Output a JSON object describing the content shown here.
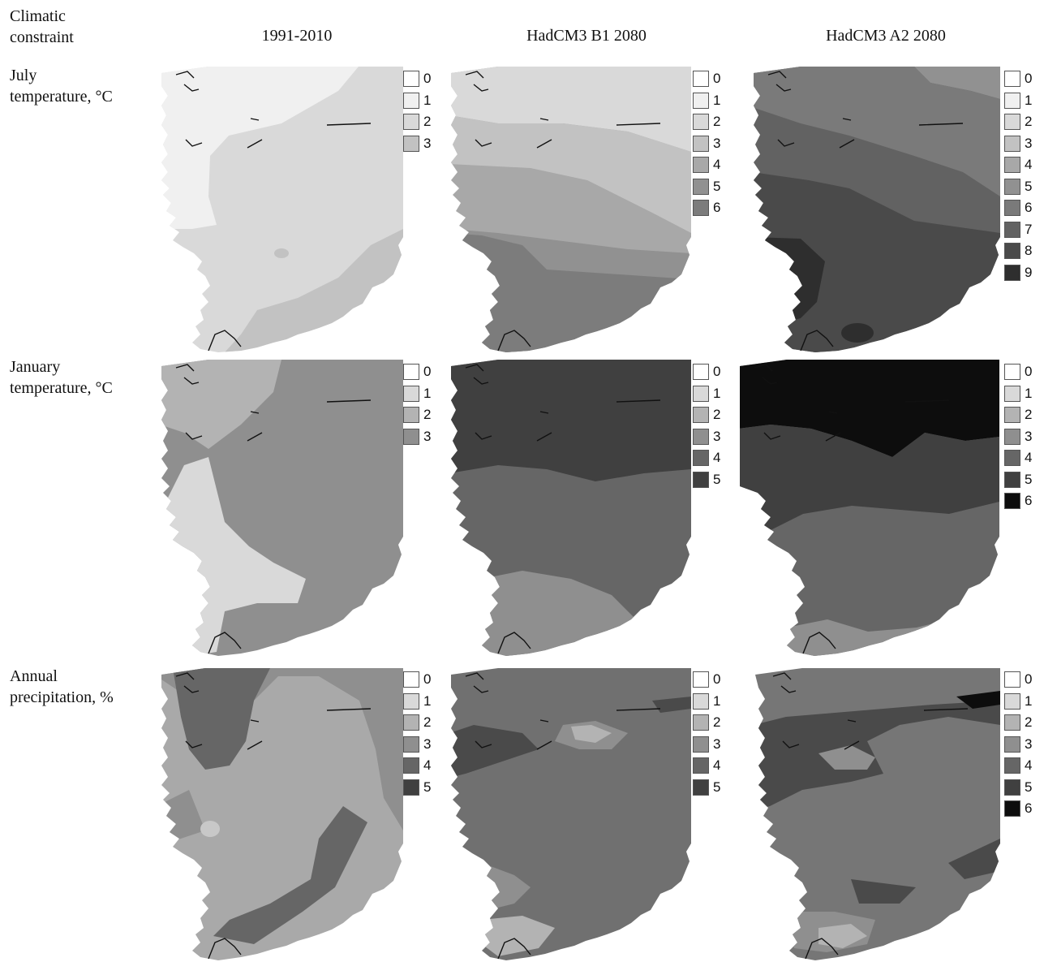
{
  "header": {
    "row_label": "Climatic\nconstraint",
    "columns": [
      "1991-2010",
      "HadCM3 B1 2080",
      "HadCM3 A2 2080"
    ]
  },
  "rows": [
    {
      "label": "July\ntemperature, °C",
      "panels": [
        {
          "legend": [
            {
              "label": "0",
              "color": "#ffffff"
            },
            {
              "label": "1",
              "color": "#f0f0f0"
            },
            {
              "label": "2",
              "color": "#d9d9d9"
            },
            {
              "label": "3",
              "color": "#c2c2c2"
            }
          ],
          "zones": [
            {
              "class": "2",
              "color": "#d9d9d9"
            },
            {
              "class": "1",
              "color": "#f0f0f0"
            },
            {
              "class": "3",
              "color": "#c2c2c2"
            }
          ]
        },
        {
          "legend": [
            {
              "label": "0",
              "color": "#ffffff"
            },
            {
              "label": "1",
              "color": "#f0f0f0"
            },
            {
              "label": "2",
              "color": "#d9d9d9"
            },
            {
              "label": "3",
              "color": "#c2c2c2"
            },
            {
              "label": "4",
              "color": "#a8a8a8"
            },
            {
              "label": "5",
              "color": "#919191"
            },
            {
              "label": "6",
              "color": "#7c7c7c"
            }
          ],
          "zones": [
            {
              "class": "4",
              "color": "#a8a8a8"
            },
            {
              "class": "2",
              "color": "#d9d9d9"
            },
            {
              "class": "3",
              "color": "#c2c2c2"
            },
            {
              "class": "5",
              "color": "#919191"
            },
            {
              "class": "6",
              "color": "#7c7c7c"
            }
          ]
        },
        {
          "legend": [
            {
              "label": "0",
              "color": "#ffffff"
            },
            {
              "label": "1",
              "color": "#f0f0f0"
            },
            {
              "label": "2",
              "color": "#d9d9d9"
            },
            {
              "label": "3",
              "color": "#c2c2c2"
            },
            {
              "label": "4",
              "color": "#a8a8a8"
            },
            {
              "label": "5",
              "color": "#919191"
            },
            {
              "label": "6",
              "color": "#7a7a7a"
            },
            {
              "label": "7",
              "color": "#626262"
            },
            {
              "label": "8",
              "color": "#4a4a4a"
            },
            {
              "label": "9",
              "color": "#2e2e2e"
            }
          ],
          "zones": [
            {
              "class": "7",
              "color": "#626262"
            },
            {
              "class": "5",
              "color": "#919191"
            },
            {
              "class": "6",
              "color": "#7a7a7a"
            },
            {
              "class": "8",
              "color": "#4a4a4a"
            },
            {
              "class": "9",
              "color": "#2e2e2e"
            }
          ]
        }
      ]
    },
    {
      "label": "January\ntemperature, °C",
      "panels": [
        {
          "legend": [
            {
              "label": "0",
              "color": "#ffffff"
            },
            {
              "label": "1",
              "color": "#d9d9d9"
            },
            {
              "label": "2",
              "color": "#b3b3b3"
            },
            {
              "label": "3",
              "color": "#8f8f8f"
            }
          ],
          "zones": [
            {
              "class": "3",
              "color": "#8f8f8f"
            },
            {
              "class": "2",
              "color": "#b3b3b3"
            },
            {
              "class": "1",
              "color": "#d9d9d9"
            }
          ]
        },
        {
          "legend": [
            {
              "label": "0",
              "color": "#ffffff"
            },
            {
              "label": "1",
              "color": "#d9d9d9"
            },
            {
              "label": "2",
              "color": "#b3b3b3"
            },
            {
              "label": "3",
              "color": "#8f8f8f"
            },
            {
              "label": "4",
              "color": "#666666"
            },
            {
              "label": "5",
              "color": "#404040"
            }
          ],
          "zones": [
            {
              "class": "4",
              "color": "#666666"
            },
            {
              "class": "5",
              "color": "#404040"
            },
            {
              "class": "3",
              "color": "#8f8f8f"
            }
          ]
        },
        {
          "legend": [
            {
              "label": "0",
              "color": "#ffffff"
            },
            {
              "label": "1",
              "color": "#d9d9d9"
            },
            {
              "label": "2",
              "color": "#b3b3b3"
            },
            {
              "label": "3",
              "color": "#8f8f8f"
            },
            {
              "label": "4",
              "color": "#666666"
            },
            {
              "label": "5",
              "color": "#404040"
            },
            {
              "label": "6",
              "color": "#0d0d0d"
            }
          ],
          "zones": [
            {
              "class": "4",
              "color": "#666666"
            },
            {
              "class": "6",
              "color": "#0d0d0d"
            },
            {
              "class": "5",
              "color": "#404040"
            },
            {
              "class": "3",
              "color": "#8f8f8f"
            }
          ]
        }
      ]
    },
    {
      "label": "Annual\nprecipitation, %",
      "panels": [
        {
          "legend": [
            {
              "label": "0",
              "color": "#ffffff"
            },
            {
              "label": "1",
              "color": "#d9d9d9"
            },
            {
              "label": "2",
              "color": "#b3b3b3"
            },
            {
              "label": "3",
              "color": "#8f8f8f"
            },
            {
              "label": "4",
              "color": "#666666"
            },
            {
              "label": "5",
              "color": "#404040"
            }
          ],
          "zones": [
            {
              "class": "2",
              "color": "#a9a9a9"
            },
            {
              "class": "3",
              "color": "#8f8f8f"
            },
            {
              "class": "4",
              "color": "#666666"
            },
            {
              "class": "1",
              "color": "#c8c8c8"
            }
          ]
        },
        {
          "legend": [
            {
              "label": "0",
              "color": "#ffffff"
            },
            {
              "label": "1",
              "color": "#d9d9d9"
            },
            {
              "label": "2",
              "color": "#b3b3b3"
            },
            {
              "label": "3",
              "color": "#8f8f8f"
            },
            {
              "label": "4",
              "color": "#666666"
            },
            {
              "label": "5",
              "color": "#404040"
            }
          ],
          "zones": [
            {
              "class": "4",
              "color": "#707070"
            },
            {
              "class": "5",
              "color": "#4a4a4a"
            },
            {
              "class": "3",
              "color": "#8f8f8f"
            },
            {
              "class": "2",
              "color": "#b3b3b3"
            }
          ]
        },
        {
          "legend": [
            {
              "label": "0",
              "color": "#ffffff"
            },
            {
              "label": "1",
              "color": "#d9d9d9"
            },
            {
              "label": "2",
              "color": "#b3b3b3"
            },
            {
              "label": "3",
              "color": "#8f8f8f"
            },
            {
              "label": "4",
              "color": "#666666"
            },
            {
              "label": "5",
              "color": "#404040"
            },
            {
              "label": "6",
              "color": "#0d0d0d"
            }
          ],
          "zones": [
            {
              "class": "4",
              "color": "#767676"
            },
            {
              "class": "5",
              "color": "#4a4a4a"
            },
            {
              "class": "3",
              "color": "#8f8f8f"
            },
            {
              "class": "6",
              "color": "#0d0d0d"
            },
            {
              "class": "2",
              "color": "#b3b3b3"
            }
          ]
        }
      ]
    }
  ]
}
